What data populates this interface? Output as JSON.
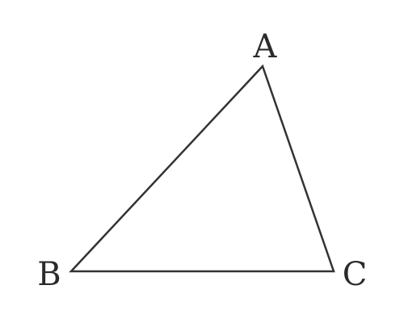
{
  "figure": {
    "type": "triangle",
    "vertices": {
      "a": {
        "label": "A"
      },
      "b": {
        "label": "B"
      },
      "c": {
        "label": "C"
      }
    },
    "stroke_color": "#333333",
    "label_color": "#2b2b2b"
  }
}
